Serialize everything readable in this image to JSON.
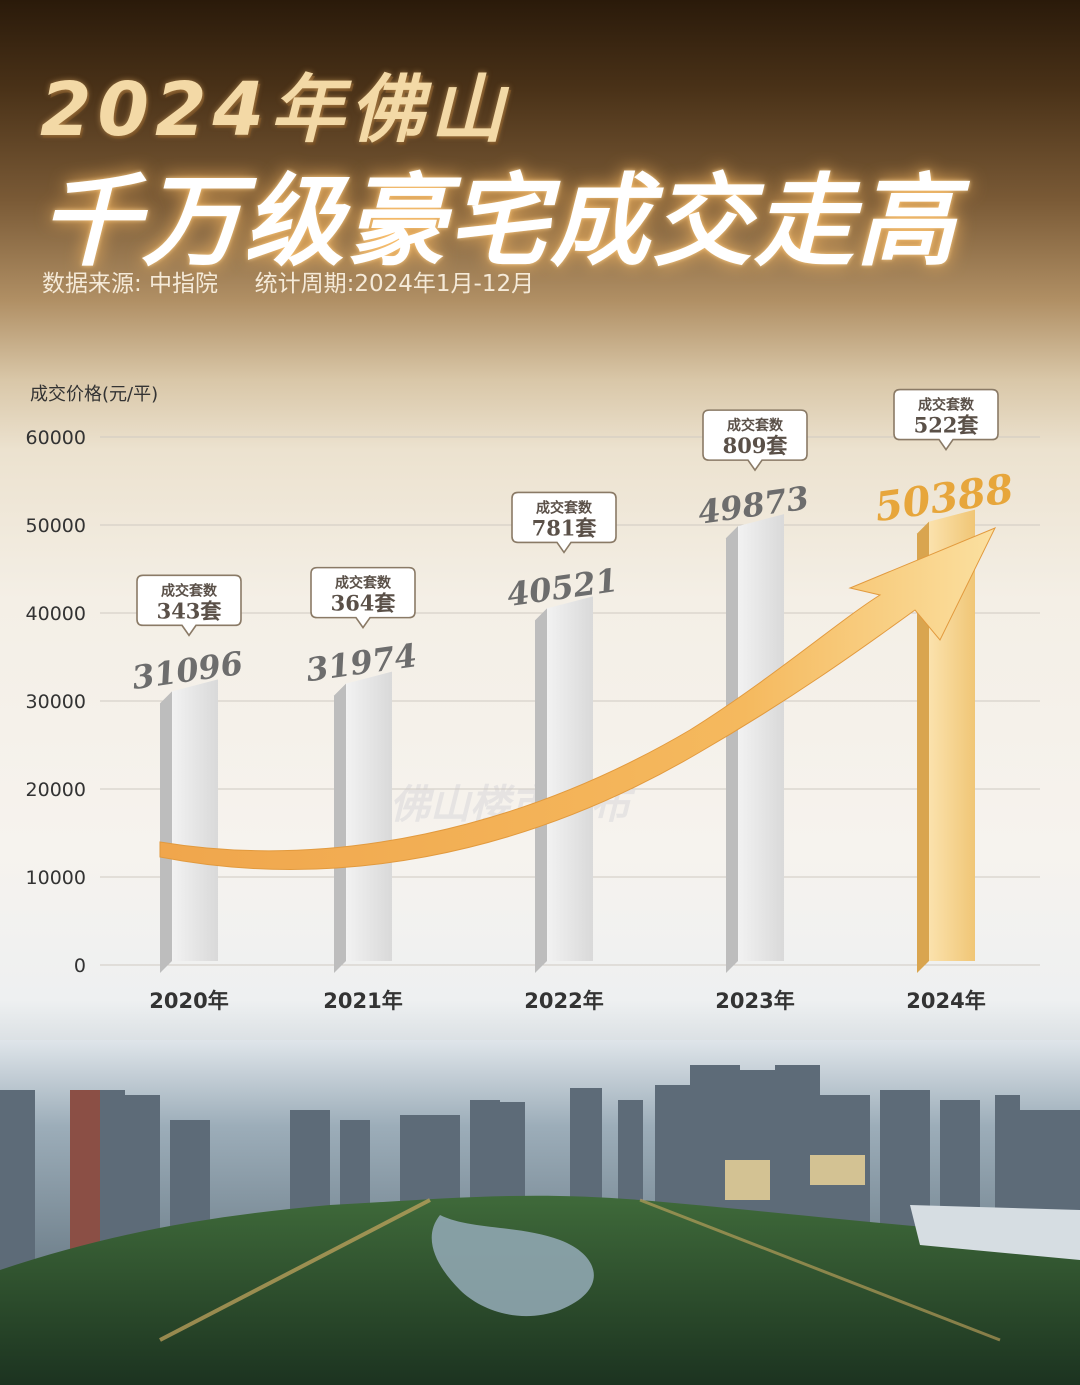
{
  "header": {
    "title_line1": "2024年佛山",
    "title_line2": "千万级豪宅成交走高",
    "subtitle": "数据来源: 中指院     统计周期:2024年1月-12月"
  },
  "watermark": "@佛山楼市发布",
  "colors": {
    "gray_bar": "#e4e4e4",
    "gold_bar": "#f4cf86",
    "arrow": "#f2a84a",
    "highlight_value": "#e7a63b"
  },
  "chart_data": {
    "type": "bar",
    "ylabel": "成交价格(元/平)",
    "ylim": [
      0,
      60000
    ],
    "yticks": [
      0,
      10000,
      20000,
      30000,
      40000,
      50000,
      60000
    ],
    "grid": true,
    "categories": [
      "2020年",
      "2021年",
      "2022年",
      "2023年",
      "2024年"
    ],
    "values": [
      31096,
      31974,
      40521,
      49873,
      50388
    ],
    "value_labels": [
      "31096",
      "31974",
      "40521",
      "49873",
      "50388"
    ],
    "callout_title": "成交套数",
    "units_sold": [
      "343套",
      "364套",
      "781套",
      "809套",
      "522套"
    ],
    "highlight_index": 4,
    "trend": "upward-arrow"
  }
}
